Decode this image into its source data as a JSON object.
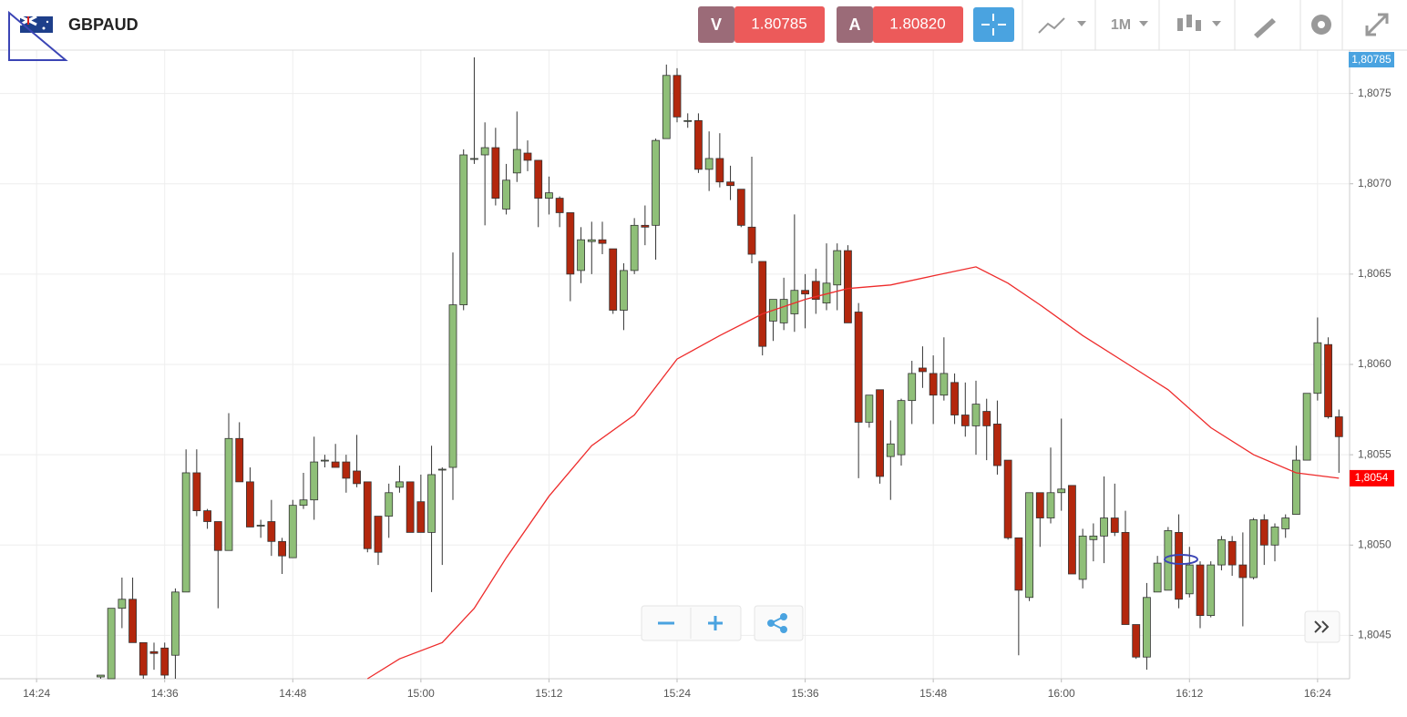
{
  "toolbar": {
    "symbol": "GBPAUD",
    "bid_label": "V",
    "bid": "1.80785",
    "ask_label": "A",
    "ask": "1.80820",
    "timeframe": "1M"
  },
  "chart_data": {
    "type": "candlestick",
    "title": "GBPAUD",
    "x": [
      "14:30",
      "14:31",
      "14:32",
      "14:33",
      "14:34",
      "14:35",
      "14:36",
      "14:37",
      "14:38",
      "14:39",
      "14:40",
      "14:41",
      "14:42",
      "14:43",
      "14:44",
      "14:45",
      "14:46",
      "14:47",
      "14:48",
      "14:49",
      "14:50",
      "14:51",
      "14:52",
      "14:53",
      "14:54",
      "14:55",
      "14:56",
      "14:57",
      "14:58",
      "14:59",
      "15:00",
      "15:01",
      "15:02",
      "15:03",
      "15:04",
      "15:05",
      "15:06",
      "15:07",
      "15:08",
      "15:09",
      "15:10",
      "15:11",
      "15:12",
      "15:13",
      "15:14",
      "15:15",
      "15:16",
      "15:17",
      "15:18",
      "15:19",
      "15:20",
      "15:21",
      "15:22",
      "15:23",
      "15:24",
      "15:25",
      "15:26",
      "15:27",
      "15:28",
      "15:29",
      "15:30",
      "15:31",
      "15:32",
      "15:33",
      "15:34",
      "15:35",
      "15:36",
      "15:37",
      "15:38",
      "15:39",
      "15:40",
      "15:41",
      "15:42",
      "15:43",
      "15:44",
      "15:45",
      "15:46",
      "15:47",
      "15:48",
      "15:49",
      "15:50",
      "15:51",
      "15:52",
      "15:53",
      "15:54",
      "15:55",
      "15:56",
      "15:57",
      "15:58",
      "15:59",
      "16:00",
      "16:01",
      "16:02",
      "16:03",
      "16:04",
      "16:05",
      "16:06",
      "16:07",
      "16:08",
      "16:09",
      "16:10",
      "16:11",
      "16:12",
      "16:13",
      "16:14",
      "16:15",
      "16:16",
      "16:17",
      "16:18",
      "16:19",
      "16:20",
      "16:21",
      "16:22",
      "16:23",
      "16:24",
      "16:25",
      "16:26"
    ],
    "open": [
      1.80427,
      1.80426,
      1.80465,
      1.8047,
      1.80446,
      1.80441,
      1.80443,
      1.80439,
      1.80474,
      1.8054,
      1.80519,
      1.80513,
      1.80497,
      1.80559,
      1.80535,
      1.80511,
      1.80513,
      1.80502,
      1.80493,
      1.80522,
      1.80525,
      1.80547,
      1.80546,
      1.80546,
      1.80541,
      1.80535,
      1.80516,
      1.80516,
      1.80532,
      1.80535,
      1.80524,
      1.80507,
      1.80542,
      1.80543,
      1.80633,
      1.80714,
      1.80716,
      1.8072,
      1.80686,
      1.80706,
      1.80717,
      1.80713,
      1.80692,
      1.80692,
      1.80684,
      1.80652,
      1.80668,
      1.80669,
      1.80664,
      1.8063,
      1.80652,
      1.80677,
      1.80677,
      1.80725,
      1.8076,
      1.80735,
      1.80735,
      1.80708,
      1.80714,
      1.80701,
      1.80697,
      1.80676,
      1.80657,
      1.80624,
      1.80623,
      1.80628,
      1.80641,
      1.80646,
      1.80634,
      1.80644,
      1.80663,
      1.80629,
      1.80568,
      1.80586,
      1.80549,
      1.8055,
      1.8058,
      1.80598,
      1.80595,
      1.80583,
      1.8059,
      1.80572,
      1.80566,
      1.80574,
      1.80567,
      1.80547,
      1.80504,
      1.80471,
      1.80529,
      1.80515,
      1.80529,
      1.80533,
      1.80481,
      1.80503,
      1.80505,
      1.80515,
      1.80507,
      1.80456,
      1.80438,
      1.80474,
      1.80475,
      1.80507,
      1.80473,
      1.80489,
      1.80461,
      1.80489,
      1.80502,
      1.80489,
      1.80482,
      1.80514,
      1.805,
      1.80509,
      1.80517,
      1.80547,
      1.80584,
      1.80611,
      1.80571
    ],
    "high": [
      1.80428,
      1.80465,
      1.80482,
      1.80482,
      1.80446,
      1.80446,
      1.80446,
      1.80476,
      1.80553,
      1.80553,
      1.8052,
      1.80513,
      1.80573,
      1.80568,
      1.80543,
      1.80514,
      1.80525,
      1.80504,
      1.80525,
      1.8054,
      1.8056,
      1.8055,
      1.80556,
      1.8055,
      1.80561,
      1.80535,
      1.80516,
      1.80534,
      1.80544,
      1.80535,
      1.80539,
      1.80555,
      1.80543,
      1.80662,
      1.80719,
      1.8077,
      1.80734,
      1.80731,
      1.80711,
      1.8074,
      1.80724,
      1.80713,
      1.80704,
      1.80693,
      1.80684,
      1.80676,
      1.80679,
      1.80679,
      1.80664,
      1.80656,
      1.80681,
      1.80688,
      1.80725,
      1.80766,
      1.80764,
      1.80739,
      1.80739,
      1.80729,
      1.80728,
      1.8071,
      1.80697,
      1.80715,
      1.80657,
      1.80636,
      1.80648,
      1.80683,
      1.8065,
      1.80653,
      1.80667,
      1.80667,
      1.80666,
      1.80634,
      1.80583,
      1.80586,
      1.80569,
      1.80581,
      1.80602,
      1.8061,
      1.80605,
      1.80615,
      1.80595,
      1.8059,
      1.80591,
      1.80581,
      1.8058,
      1.80547,
      1.80504,
      1.80529,
      1.80529,
      1.80554,
      1.8057,
      1.80533,
      1.80509,
      1.80512,
      1.80538,
      1.80534,
      1.80519,
      1.80456,
      1.80479,
      1.80494,
      1.8051,
      1.80517,
      1.80499,
      1.80491,
      1.80491,
      1.80505,
      1.80505,
      1.80507,
      1.80515,
      1.80517,
      1.80512,
      1.80517,
      1.80555,
      1.80584,
      1.80626,
      1.80615,
      1.80575
    ],
    "low": [
      1.80426,
      1.80426,
      1.80454,
      1.80446,
      1.80426,
      1.80431,
      1.80426,
      1.80426,
      1.80474,
      1.80516,
      1.80509,
      1.80465,
      1.80497,
      1.80535,
      1.8051,
      1.80504,
      1.80494,
      1.80484,
      1.80493,
      1.8052,
      1.80514,
      1.80543,
      1.80543,
      1.80529,
      1.80532,
      1.80496,
      1.80489,
      1.80504,
      1.80529,
      1.80507,
      1.80507,
      1.80474,
      1.80489,
      1.80525,
      1.8063,
      1.80711,
      1.80677,
      1.80688,
      1.80683,
      1.80701,
      1.80707,
      1.80676,
      1.80683,
      1.80676,
      1.80635,
      1.80645,
      1.8065,
      1.80661,
      1.80628,
      1.80619,
      1.8065,
      1.80666,
      1.80658,
      1.80725,
      1.80734,
      1.80731,
      1.80706,
      1.80696,
      1.80698,
      1.80691,
      1.80676,
      1.80656,
      1.80605,
      1.80613,
      1.80619,
      1.80618,
      1.8062,
      1.80628,
      1.8063,
      1.8063,
      1.80623,
      1.80537,
      1.80565,
      1.80534,
      1.80525,
      1.80544,
      1.80567,
      1.80587,
      1.80567,
      1.8058,
      1.80567,
      1.8056,
      1.8055,
      1.80547,
      1.80539,
      1.80503,
      1.80439,
      1.80469,
      1.80499,
      1.80512,
      1.80519,
      1.80484,
      1.80476,
      1.80491,
      1.8049,
      1.80505,
      1.80456,
      1.80437,
      1.80431,
      1.80474,
      1.80475,
      1.80465,
      1.80471,
      1.80454,
      1.8046,
      1.80486,
      1.80483,
      1.80455,
      1.80481,
      1.80489,
      1.80491,
      1.80504,
      1.80517,
      1.80547,
      1.8058,
      1.8057,
      1.8054
    ],
    "close": [
      1.80428,
      1.80465,
      1.8047,
      1.80446,
      1.80428,
      1.8044,
      1.80428,
      1.80474,
      1.8054,
      1.80519,
      1.80513,
      1.80497,
      1.80559,
      1.80535,
      1.8051,
      1.80511,
      1.80502,
      1.80494,
      1.80522,
      1.80525,
      1.80546,
      1.80547,
      1.80543,
      1.80537,
      1.80534,
      1.80498,
      1.80496,
      1.80529,
      1.80535,
      1.80507,
      1.80507,
      1.80539,
      1.80542,
      1.80633,
      1.80716,
      1.80714,
      1.8072,
      1.80692,
      1.80702,
      1.80719,
      1.80713,
      1.80692,
      1.80695,
      1.80684,
      1.8065,
      1.80669,
      1.80669,
      1.80667,
      1.8063,
      1.80652,
      1.80677,
      1.80676,
      1.80724,
      1.8076,
      1.80737,
      1.80735,
      1.80708,
      1.80714,
      1.80701,
      1.80699,
      1.80677,
      1.80661,
      1.8061,
      1.80636,
      1.80636,
      1.80641,
      1.80639,
      1.80636,
      1.80645,
      1.80663,
      1.80623,
      1.80568,
      1.80583,
      1.80538,
      1.80556,
      1.8058,
      1.80595,
      1.80596,
      1.80583,
      1.80595,
      1.80572,
      1.80566,
      1.80578,
      1.80566,
      1.80544,
      1.80504,
      1.80475,
      1.80529,
      1.80515,
      1.80529,
      1.80531,
      1.80484,
      1.80505,
      1.80505,
      1.80515,
      1.80507,
      1.80456,
      1.80438,
      1.80471,
      1.8049,
      1.80508,
      1.8047,
      1.80489,
      1.80461,
      1.80489,
      1.80503,
      1.80489,
      1.80482,
      1.80514,
      1.805,
      1.8051,
      1.80515,
      1.80547,
      1.80584,
      1.80612,
      1.80571,
      1.8056
    ],
    "up_color": "#8fbf78",
    "down_color": "#b3270d",
    "ma": {
      "color": "#ee2b2b",
      "x": [
        "14:55",
        "14:58",
        "15:02",
        "15:05",
        "15:08",
        "15:12",
        "15:16",
        "15:20",
        "15:24",
        "15:28",
        "15:32",
        "15:36",
        "15:40",
        "15:44",
        "15:48",
        "15:52",
        "15:55",
        "15:58",
        "16:02",
        "16:06",
        "16:10",
        "16:14",
        "16:18",
        "16:22",
        "16:26"
      ],
      "values": [
        1.80426,
        1.80437,
        1.80446,
        1.80465,
        1.80493,
        1.80527,
        1.80555,
        1.80572,
        1.80603,
        1.80616,
        1.80628,
        1.80636,
        1.80642,
        1.80644,
        1.80649,
        1.80654,
        1.80645,
        1.80633,
        1.80616,
        1.80601,
        1.80586,
        1.80565,
        1.8055,
        1.8054,
        1.80537
      ]
    },
    "xlim": [
      "14:21",
      "16:27"
    ],
    "xticks": [
      "14:24",
      "14:36",
      "14:48",
      "15:00",
      "15:12",
      "15:24",
      "15:36",
      "15:48",
      "16:00",
      "16:12",
      "16:24"
    ],
    "ylim": [
      1.80426,
      1.80774
    ],
    "yticks": [
      {
        "value": 1.8045,
        "label": "1,8045"
      },
      {
        "value": 1.805,
        "label": "1,8050"
      },
      {
        "value": 1.8055,
        "label": "1,8055"
      },
      {
        "value": 1.806,
        "label": "1,8060"
      },
      {
        "value": 1.8065,
        "label": "1,8065"
      },
      {
        "value": 1.807,
        "label": "1,8070"
      },
      {
        "value": 1.8075,
        "label": "1,8075"
      }
    ],
    "grid": true,
    "price_tag": "1,80785",
    "ma_tag": {
      "value": 1.80537,
      "label": "1,8054"
    }
  }
}
